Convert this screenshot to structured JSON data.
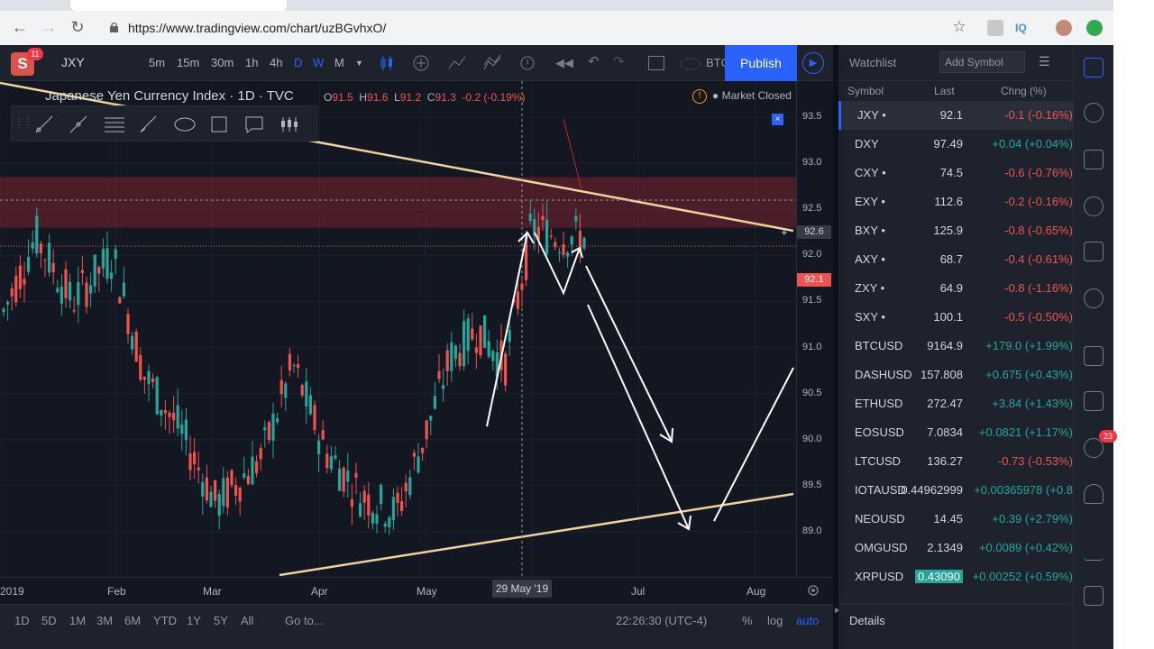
{
  "browser": {
    "url": "https://www.tradingview.com/chart/uzBGvhxO/"
  },
  "header": {
    "badge": "11",
    "symbol": "JXY",
    "intervals": [
      "5m",
      "15m",
      "30m",
      "1h",
      "4h",
      "D",
      "W",
      "M"
    ],
    "partial_text": "BTC",
    "publish_label": "Publish"
  },
  "chart": {
    "title": "Japanese Yen Currency Index · 1D · TVC",
    "ohlc": {
      "o_label": "O",
      "o": "91.5",
      "h_label": "H",
      "h": "91.6",
      "l_label": "L",
      "l": "91.2",
      "c_label": "C",
      "c": "91.3",
      "change": "-0.2 (-0.19%)"
    },
    "market_status": "Market Closed",
    "price_ticks": [
      "93.5",
      "93.0",
      "92.5",
      "92.0",
      "91.5",
      "91.0",
      "90.5",
      "90.0",
      "89.5",
      "89.0"
    ],
    "price_label_cross": "92.6",
    "price_label_last": "92.1",
    "time_ticks": [
      "2019",
      "Feb",
      "Mar",
      "Apr",
      "May",
      "Jul",
      "Aug"
    ],
    "time_hover": "29 May '19"
  },
  "bottombar": {
    "ranges": [
      "1D",
      "5D",
      "1M",
      "3M",
      "6M",
      "YTD",
      "1Y",
      "5Y",
      "All"
    ],
    "goto": "Go to...",
    "clock": "22:26:30 (UTC-4)",
    "pct": "%",
    "log": "log",
    "auto": "auto"
  },
  "watchlist": {
    "title": "Watchlist",
    "add_symbol_placeholder": "Add Symbol",
    "columns": {
      "symbol": "Symbol",
      "last": "Last",
      "change": "Chng (%)"
    },
    "rows": [
      {
        "symbol": "JXY •",
        "last": "92.1",
        "change": "-0.1 (-0.16%)",
        "dir": "down"
      },
      {
        "symbol": "DXY",
        "last": "97.49",
        "change": "+0.04 (+0.04%)",
        "dir": "up"
      },
      {
        "symbol": "CXY •",
        "last": "74.5",
        "change": "-0.6 (-0.76%)",
        "dir": "down"
      },
      {
        "symbol": "EXY •",
        "last": "112.6",
        "change": "-0.2 (-0.16%)",
        "dir": "down"
      },
      {
        "symbol": "BXY •",
        "last": "125.9",
        "change": "-0.8 (-0.65%)",
        "dir": "down"
      },
      {
        "symbol": "AXY •",
        "last": "68.7",
        "change": "-0.4 (-0.61%)",
        "dir": "down"
      },
      {
        "symbol": "ZXY •",
        "last": "64.9",
        "change": "-0.8 (-1.16%)",
        "dir": "down"
      },
      {
        "symbol": "SXY •",
        "last": "100.1",
        "change": "-0.5 (-0.50%)",
        "dir": "down"
      },
      {
        "symbol": "BTCUSD",
        "last": "9164.9",
        "change": "+179.0 (+1.99%)",
        "dir": "up"
      },
      {
        "symbol": "DASHUSD",
        "last": "157.808",
        "change": "+0.675 (+0.43%)",
        "dir": "up"
      },
      {
        "symbol": "ETHUSD",
        "last": "272.47",
        "change": "+3.84 (+1.43%)",
        "dir": "up"
      },
      {
        "symbol": "EOSUSD",
        "last": "7.0834",
        "change": "+0.0821 (+1.17%)",
        "dir": "up"
      },
      {
        "symbol": "LTCUSD",
        "last": "136.27",
        "change": "-0.73 (-0.53%)",
        "dir": "down"
      },
      {
        "symbol": "IOTAUSD",
        "last": "0.44962999",
        "change": "+0.00365978 (+0.8",
        "dir": "up"
      },
      {
        "symbol": "NEOUSD",
        "last": "14.45",
        "change": "+0.39 (+2.79%)",
        "dir": "up"
      },
      {
        "symbol": "OMGUSD",
        "last": "2.1349",
        "change": "+0.0089 (+0.42%)",
        "dir": "up"
      },
      {
        "symbol": "XRPUSD",
        "last": "0.43090",
        "change": "+0.00252 (+0.59%)",
        "dir": "up"
      }
    ],
    "details": "Details",
    "notification_badge": "23"
  },
  "colors": {
    "up": "#26a69a",
    "down": "#ef5350",
    "accent": "#2962ff",
    "bg": "#131722"
  }
}
